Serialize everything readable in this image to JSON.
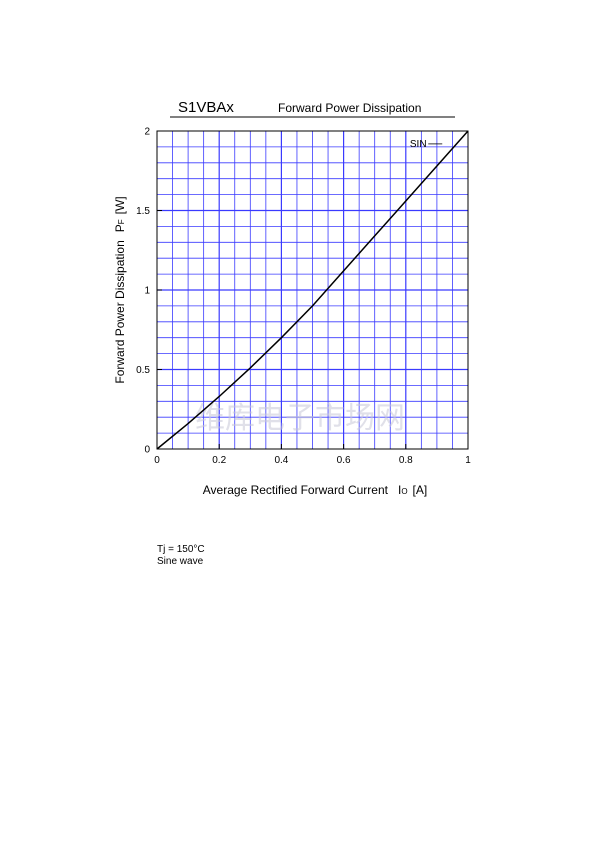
{
  "chart_data": {
    "type": "line",
    "part_number": "S1VBAx",
    "title": "Forward Power Dissipation",
    "xlabel": {
      "main": "Average Rectified Forward Current",
      "symbol": "I",
      "subscript": "O",
      "unit": "[A]"
    },
    "ylabel": {
      "main": "Forward Power Dissipation",
      "symbol": "P",
      "subscript": "F",
      "unit": "[W]"
    },
    "xlim": [
      0,
      1
    ],
    "ylim": [
      0,
      2
    ],
    "x_ticks": [
      "0",
      "0.2",
      "0.4",
      "0.6",
      "0.8",
      "1"
    ],
    "y_ticks": [
      "0",
      "0.5",
      "1",
      "1.5",
      "2"
    ],
    "grid": true,
    "grid_color": "#3a3aff",
    "series": [
      {
        "name": "SIN",
        "color": "#000000",
        "x": [
          0,
          0.1,
          0.2,
          0.3,
          0.4,
          0.5,
          0.6,
          0.7,
          0.8,
          0.9,
          1.0
        ],
        "y": [
          0,
          0.16,
          0.33,
          0.51,
          0.7,
          0.9,
          1.12,
          1.34,
          1.56,
          1.78,
          2.0
        ]
      }
    ],
    "watermark": "维库电子市场网"
  },
  "notes": [
    "Tj = 150°C",
    "Sine wave"
  ]
}
